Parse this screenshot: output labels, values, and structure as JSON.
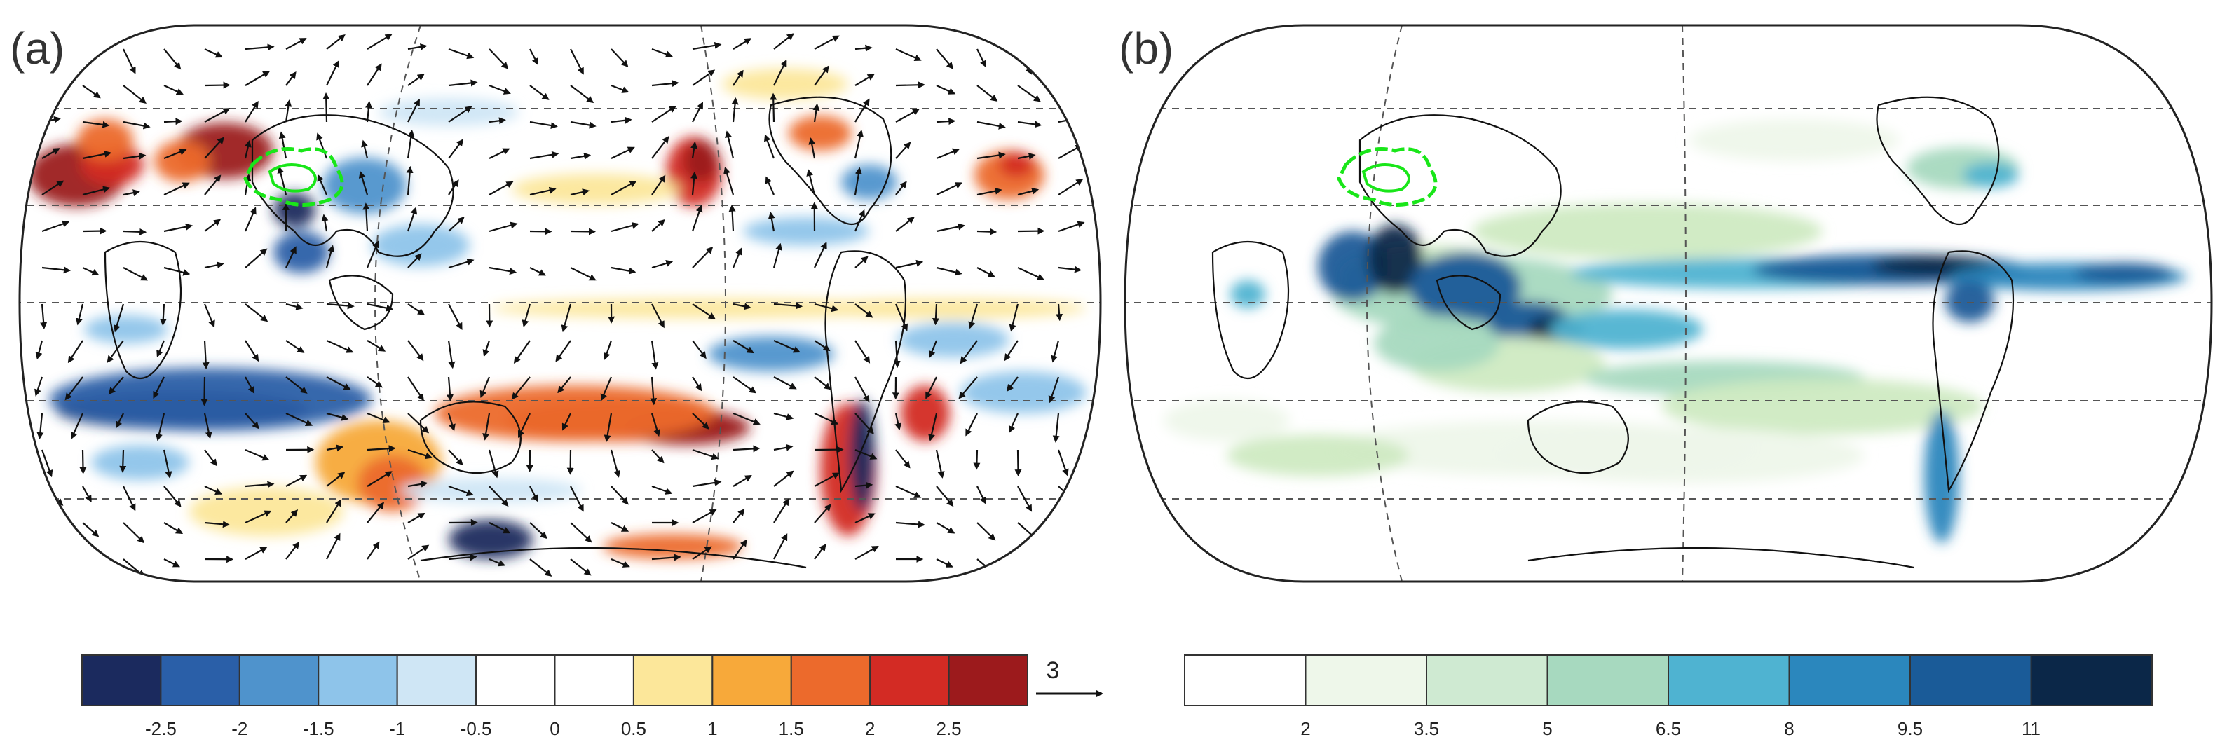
{
  "panels": [
    {
      "label": "(a)"
    },
    {
      "label": "(b)"
    }
  ],
  "colorbar_a": {
    "colors": [
      "#1b2a5e",
      "#2a5fa8",
      "#4f93cc",
      "#8ec4ea",
      "#cfe6f5",
      "#ffffff",
      "#ffffff",
      "#fce79a",
      "#f7a93a",
      "#ec6a2c",
      "#d32b24",
      "#9c1a1c"
    ],
    "ticks": [
      "-2.5",
      "-2",
      "-1.5",
      "-1",
      "-0.5",
      "0",
      "0.5",
      "1",
      "1.5",
      "2",
      "2.5"
    ],
    "vector_reference": "3"
  },
  "colorbar_b": {
    "colors": [
      "#ffffff",
      "#eef7ea",
      "#cfead2",
      "#a7d9bf",
      "#4fb3d1",
      "#2b87bd",
      "#1a5b98",
      "#0b2748"
    ],
    "ticks": [
      "2",
      "3.5",
      "5",
      "6.5",
      "8",
      "9.5",
      "11"
    ]
  }
}
